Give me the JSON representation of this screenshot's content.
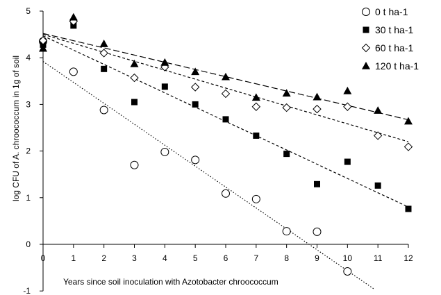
{
  "chart_data": {
    "type": "scatter",
    "title": "",
    "xlabel": "Years since soil inoculation with Azotobacter chroococcum",
    "ylabel": "log CFU of A. chroococcum in 1g of soil",
    "xlim": [
      0,
      12
    ],
    "ylim": [
      -1,
      5
    ],
    "x_ticks": [
      "0",
      "1",
      "2",
      "3",
      "4",
      "5",
      "6",
      "7",
      "8",
      "9",
      "10",
      "11",
      "12"
    ],
    "y_ticks": [
      "-1",
      "0",
      "1",
      "2",
      "3",
      "4",
      "5"
    ],
    "grid": false,
    "legend_position": "top-right",
    "series": [
      {
        "name": "0 t ha-1",
        "marker": "open-circle",
        "color": "#000000",
        "x": [
          0,
          1,
          2,
          3,
          4,
          5,
          6,
          7,
          8,
          9,
          10
        ],
        "y": [
          4.35,
          3.7,
          2.88,
          1.7,
          1.98,
          1.81,
          1.09,
          0.97,
          0.28,
          0.27,
          -0.58
        ],
        "trend": {
          "style": "dotted",
          "x": [
            0,
            10.9
          ],
          "y": [
            3.92,
            -0.97
          ]
        }
      },
      {
        "name": "30 t ha-1",
        "marker": "filled-square",
        "color": "#000000",
        "x": [
          0,
          1,
          2,
          3,
          4,
          5,
          6,
          7,
          8,
          9,
          10,
          11,
          12
        ],
        "y": [
          4.28,
          4.69,
          3.76,
          3.05,
          3.38,
          3.0,
          2.68,
          2.33,
          1.94,
          1.29,
          1.77,
          1.26,
          0.76
        ],
        "trend": {
          "style": "dashed",
          "x": [
            0,
            12
          ],
          "y": [
            4.47,
            0.8
          ]
        }
      },
      {
        "name": "60 t ha-1",
        "marker": "open-diamond",
        "color": "#000000",
        "x": [
          0,
          1,
          2,
          3,
          4,
          5,
          6,
          7,
          8,
          9,
          10,
          11,
          12
        ],
        "y": [
          4.37,
          4.78,
          4.1,
          3.57,
          3.8,
          3.37,
          3.23,
          2.95,
          2.93,
          2.9,
          2.95,
          2.33,
          2.09
        ],
        "trend": {
          "style": "dashed",
          "x": [
            0,
            12
          ],
          "y": [
            4.5,
            2.2
          ]
        }
      },
      {
        "name": "120 t ha-1",
        "marker": "filled-triangle",
        "color": "#000000",
        "x": [
          0,
          1,
          2,
          3,
          4,
          5,
          6,
          7,
          8,
          9,
          10,
          11,
          12
        ],
        "y": [
          4.2,
          4.87,
          4.3,
          3.87,
          3.9,
          3.7,
          3.59,
          3.15,
          3.24,
          3.16,
          3.29,
          2.87,
          2.64
        ],
        "trend": {
          "style": "long-dashed",
          "x": [
            0,
            12
          ],
          "y": [
            4.52,
            2.67
          ]
        }
      }
    ]
  }
}
